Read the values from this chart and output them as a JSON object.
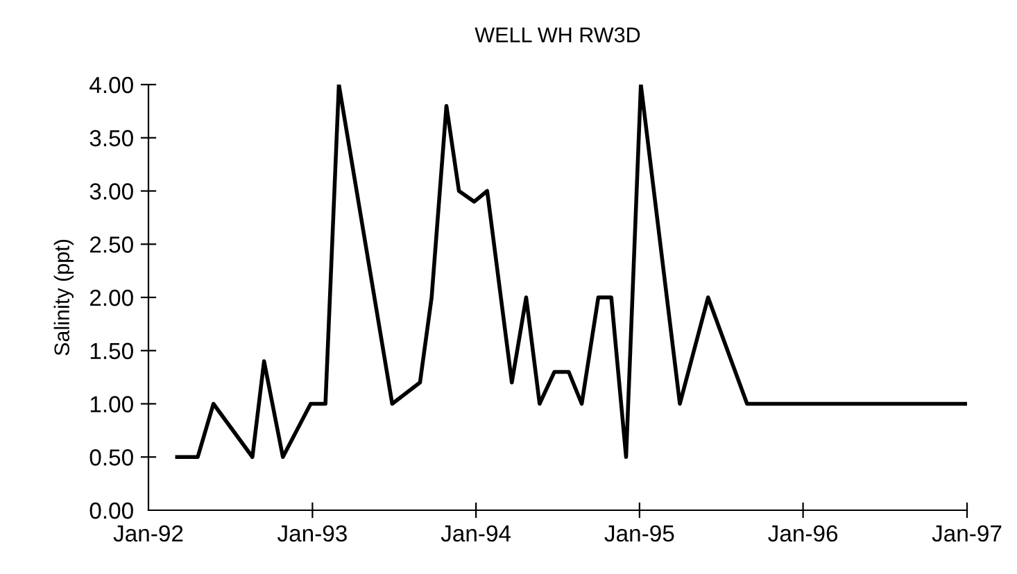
{
  "chart_data": {
    "type": "line",
    "title": "WELL WH RW3D",
    "ylabel": "Salinity (ppt)",
    "x": [
      "1992-03-05",
      "1992-04-20",
      "1992-05-25",
      "1992-08-20",
      "1992-09-15",
      "1992-10-27",
      "1992-12-28",
      "1993-01-30",
      "1993-03-01",
      "1993-06-28",
      "1993-08-29",
      "1993-09-24",
      "1993-10-27",
      "1993-11-24",
      "1993-12-28",
      "1994-01-26",
      "1994-03-22",
      "1994-04-23",
      "1994-05-23",
      "1994-06-25",
      "1994-07-27",
      "1994-08-25",
      "1994-10-01",
      "1994-10-30",
      "1994-12-02",
      "1995-01-04",
      "1995-04-01",
      "1995-06-03",
      "1995-08-29",
      "1997-01-01"
    ],
    "series": [
      {
        "color": "#000000",
        "values": [
          0.5,
          0.5,
          1.0,
          0.5,
          1.4,
          0.5,
          1.0,
          1.0,
          4.0,
          1.0,
          1.2,
          2.0,
          3.8,
          3.0,
          2.9,
          3.0,
          1.2,
          2.0,
          1.0,
          1.3,
          1.3,
          1.0,
          2.0,
          2.0,
          0.5,
          4.0,
          1.0,
          2.0,
          1.0,
          1.0
        ]
      }
    ],
    "xlim": [
      "1992-01-01",
      "1997-01-01"
    ],
    "xticks": [
      {
        "value": "1992-01-01",
        "label": "Jan-92"
      },
      {
        "value": "1993-01-01",
        "label": "Jan-93"
      },
      {
        "value": "1994-01-01",
        "label": "Jan-94"
      },
      {
        "value": "1995-01-01",
        "label": "Jan-95"
      },
      {
        "value": "1996-01-01",
        "label": "Jan-96"
      },
      {
        "value": "1997-01-01",
        "label": "Jan-97"
      }
    ],
    "ylim": [
      0,
      4
    ],
    "yticks": [
      {
        "value": 0,
        "label": "0.00"
      },
      {
        "value": 0.5,
        "label": "0.50"
      },
      {
        "value": 1,
        "label": "1.00"
      },
      {
        "value": 1.5,
        "label": "1.50"
      },
      {
        "value": 2,
        "label": "2.00"
      },
      {
        "value": 2.5,
        "label": "2.50"
      },
      {
        "value": 3,
        "label": "3.00"
      },
      {
        "value": 3.5,
        "label": "3.50"
      },
      {
        "value": 4,
        "label": "4.00"
      }
    ],
    "grid": false,
    "legend": false,
    "marker": "none",
    "line_style": "solid"
  }
}
